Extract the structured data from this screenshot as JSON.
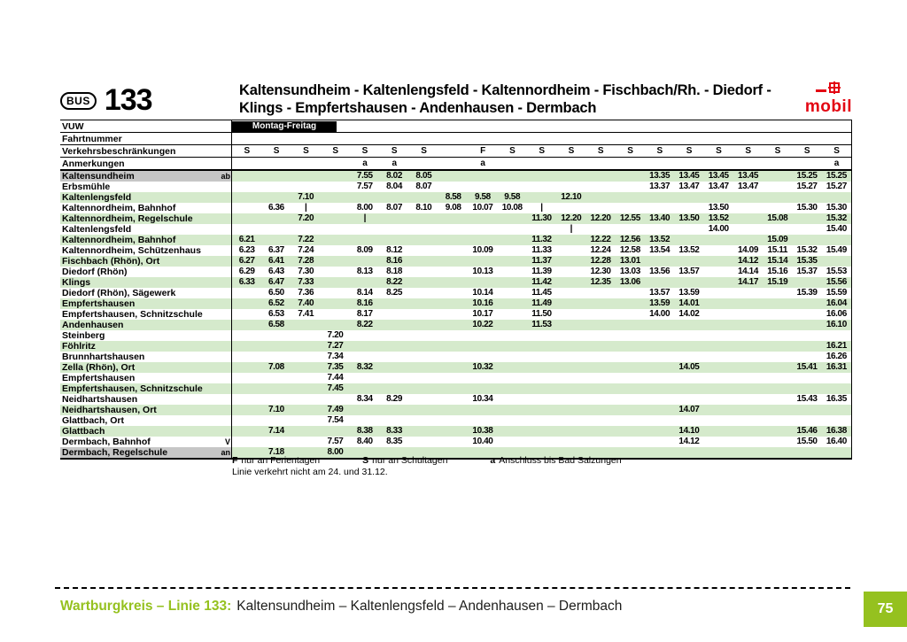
{
  "colors": {
    "accent_green": "#95c11f",
    "stripe_green": "#d5eacc",
    "endpoint_gray": "#c6c6c6",
    "logo_red": "#e30613"
  },
  "header": {
    "bus_badge": "BUS",
    "line_number": "133",
    "title_line1": "Kaltensundheim - Kaltenlengsfeld - Kaltennordheim - Fischbach/Rh. - Diedorf -",
    "title_line2": "Klings - Empfertshausen - Andenhausen - Dermbach",
    "logo": "mobil"
  },
  "table": {
    "column_count": 21,
    "day_band": "Montag-Freitag",
    "meta": {
      "vuw_label": "VUW",
      "fahrtnummer_label": "Fahrtnummer",
      "restrictions_label": "Verkehrsbeschränkungen",
      "restrictions": [
        "S",
        "S",
        "S",
        "S",
        "S",
        "S",
        "S",
        "",
        "F",
        "S",
        "S",
        "S",
        "S",
        "S",
        "S",
        "S",
        "S",
        "S",
        "S",
        "S",
        "S"
      ],
      "remarks_label": "Anmerkungen",
      "remarks": [
        "",
        "",
        "",
        "",
        "a",
        "a",
        "",
        "",
        "a",
        "",
        "",
        "",
        "",
        "",
        "",
        "",
        "",
        "",
        "",
        "",
        "a"
      ]
    },
    "stops": [
      {
        "name": "Kaltensundheim",
        "marker": "ab",
        "endpoint": true,
        "times": [
          "",
          "",
          "",
          "",
          "7.55",
          "8.02",
          "8.05",
          "",
          "",
          "",
          "",
          "",
          "",
          "",
          "13.35",
          "13.45",
          "13.45",
          "13.45",
          "",
          "15.25",
          "15.25"
        ]
      },
      {
        "name": "Erbsmühle",
        "marker": "",
        "endpoint": false,
        "times": [
          "",
          "",
          "",
          "",
          "7.57",
          "8.04",
          "8.07",
          "",
          "",
          "",
          "",
          "",
          "",
          "",
          "13.37",
          "13.47",
          "13.47",
          "13.47",
          "",
          "15.27",
          "15.27"
        ]
      },
      {
        "name": "Kaltenlengsfeld",
        "marker": "",
        "endpoint": false,
        "times": [
          "",
          "",
          "7.10",
          "",
          "",
          "",
          "",
          "8.58",
          "9.58",
          "9.58",
          "",
          "12.10",
          "",
          "",
          "",
          "",
          "",
          "",
          "",
          "",
          ""
        ]
      },
      {
        "name": "Kaltennordheim, Bahnhof",
        "marker": "",
        "endpoint": false,
        "times": [
          "",
          "6.36",
          "|",
          "",
          "8.00",
          "8.07",
          "8.10",
          "9.08",
          "10.07",
          "10.08",
          "|",
          "",
          "",
          "",
          "",
          "",
          "13.50",
          "",
          "",
          "15.30",
          "15.30"
        ]
      },
      {
        "name": "Kaltennordheim, Regelschule",
        "marker": "",
        "endpoint": false,
        "times": [
          "",
          "",
          "7.20",
          "",
          "|",
          "",
          "",
          "",
          "",
          "",
          "11.30",
          "12.20",
          "12.20",
          "12.55",
          "13.40",
          "13.50",
          "13.52",
          "",
          "15.08",
          "",
          "15.32"
        ]
      },
      {
        "name": "Kaltenlengsfeld",
        "marker": "",
        "endpoint": false,
        "times": [
          "",
          "",
          "",
          "",
          "",
          "",
          "",
          "",
          "",
          "",
          "",
          "|",
          "",
          "",
          "",
          "",
          "14.00",
          "",
          "",
          "",
          "15.40"
        ]
      },
      {
        "name": "Kaltennordheim, Bahnhof",
        "marker": "",
        "endpoint": false,
        "times": [
          "6.21",
          "",
          "7.22",
          "",
          "",
          "",
          "",
          "",
          "",
          "",
          "11.32",
          "",
          "12.22",
          "12.56",
          "13.52",
          "",
          "",
          "",
          "15.09",
          "",
          ""
        ]
      },
      {
        "name": "Kaltennordheim, Schützenhaus",
        "marker": "",
        "endpoint": false,
        "times": [
          "6.23",
          "6.37",
          "7.24",
          "",
          "8.09",
          "8.12",
          "",
          "",
          "10.09",
          "",
          "11.33",
          "",
          "12.24",
          "12.58",
          "13.54",
          "13.52",
          "",
          "14.09",
          "15.11",
          "15.32",
          "15.49"
        ]
      },
      {
        "name": "Fischbach (Rhön), Ort",
        "marker": "",
        "endpoint": false,
        "times": [
          "6.27",
          "6.41",
          "7.28",
          "",
          "",
          "8.16",
          "",
          "",
          "",
          "",
          "11.37",
          "",
          "12.28",
          "13.01",
          "",
          "",
          "",
          "14.12",
          "15.14",
          "15.35",
          ""
        ]
      },
      {
        "name": "Diedorf (Rhön)",
        "marker": "",
        "endpoint": false,
        "times": [
          "6.29",
          "6.43",
          "7.30",
          "",
          "8.13",
          "8.18",
          "",
          "",
          "10.13",
          "",
          "11.39",
          "",
          "12.30",
          "13.03",
          "13.56",
          "13.57",
          "",
          "14.14",
          "15.16",
          "15.37",
          "15.53"
        ]
      },
      {
        "name": "Klings",
        "marker": "",
        "endpoint": false,
        "times": [
          "6.33",
          "6.47",
          "7.33",
          "",
          "",
          "8.22",
          "",
          "",
          "",
          "",
          "11.42",
          "",
          "12.35",
          "13.06",
          "",
          "",
          "",
          "14.17",
          "15.19",
          "",
          "15.56"
        ]
      },
      {
        "name": "Diedorf (Rhön), Sägewerk",
        "marker": "",
        "endpoint": false,
        "times": [
          "",
          "6.50",
          "7.36",
          "",
          "8.14",
          "8.25",
          "",
          "",
          "10.14",
          "",
          "11.45",
          "",
          "",
          "",
          "13.57",
          "13.59",
          "",
          "",
          "",
          "15.39",
          "15.59"
        ]
      },
      {
        "name": "Empfertshausen",
        "marker": "",
        "endpoint": false,
        "times": [
          "",
          "6.52",
          "7.40",
          "",
          "8.16",
          "",
          "",
          "",
          "10.16",
          "",
          "11.49",
          "",
          "",
          "",
          "13.59",
          "14.01",
          "",
          "",
          "",
          "",
          "16.04"
        ]
      },
      {
        "name": "Empfertshausen, Schnitzschule",
        "marker": "",
        "endpoint": false,
        "times": [
          "",
          "6.53",
          "7.41",
          "",
          "8.17",
          "",
          "",
          "",
          "10.17",
          "",
          "11.50",
          "",
          "",
          "",
          "14.00",
          "14.02",
          "",
          "",
          "",
          "",
          "16.06"
        ]
      },
      {
        "name": "Andenhausen",
        "marker": "",
        "endpoint": false,
        "times": [
          "",
          "6.58",
          "",
          "",
          "8.22",
          "",
          "",
          "",
          "10.22",
          "",
          "11.53",
          "",
          "",
          "",
          "",
          "",
          "",
          "",
          "",
          "",
          "16.10"
        ]
      },
      {
        "name": "Steinberg",
        "marker": "",
        "endpoint": false,
        "times": [
          "",
          "",
          "",
          "7.20",
          "",
          "",
          "",
          "",
          "",
          "",
          "",
          "",
          "",
          "",
          "",
          "",
          "",
          "",
          "",
          "",
          ""
        ]
      },
      {
        "name": "Föhlritz",
        "marker": "",
        "endpoint": false,
        "times": [
          "",
          "",
          "",
          "7.27",
          "",
          "",
          "",
          "",
          "",
          "",
          "",
          "",
          "",
          "",
          "",
          "",
          "",
          "",
          "",
          "",
          "16.21"
        ]
      },
      {
        "name": "Brunnhartshausen",
        "marker": "",
        "endpoint": false,
        "times": [
          "",
          "",
          "",
          "7.34",
          "",
          "",
          "",
          "",
          "",
          "",
          "",
          "",
          "",
          "",
          "",
          "",
          "",
          "",
          "",
          "",
          "16.26"
        ]
      },
      {
        "name": "Zella (Rhön), Ort",
        "marker": "",
        "endpoint": false,
        "times": [
          "",
          "7.08",
          "",
          "7.35",
          "8.32",
          "",
          "",
          "",
          "10.32",
          "",
          "",
          "",
          "",
          "",
          "",
          "14.05",
          "",
          "",
          "",
          "15.41",
          "16.31"
        ]
      },
      {
        "name": "Empfertshausen",
        "marker": "",
        "endpoint": false,
        "times": [
          "",
          "",
          "",
          "7.44",
          "",
          "",
          "",
          "",
          "",
          "",
          "",
          "",
          "",
          "",
          "",
          "",
          "",
          "",
          "",
          "",
          ""
        ]
      },
      {
        "name": "Empfertshausen, Schnitzschule",
        "marker": "",
        "endpoint": false,
        "times": [
          "",
          "",
          "",
          "7.45",
          "",
          "",
          "",
          "",
          "",
          "",
          "",
          "",
          "",
          "",
          "",
          "",
          "",
          "",
          "",
          "",
          ""
        ]
      },
      {
        "name": "Neidhartshausen",
        "marker": "",
        "endpoint": false,
        "times": [
          "",
          "",
          "",
          "",
          "8.34",
          "8.29",
          "",
          "",
          "10.34",
          "",
          "",
          "",
          "",
          "",
          "",
          "",
          "",
          "",
          "",
          "15.43",
          "16.35"
        ]
      },
      {
        "name": "Neidhartshausen, Ort",
        "marker": "",
        "endpoint": false,
        "times": [
          "",
          "7.10",
          "",
          "7.49",
          "",
          "",
          "",
          "",
          "",
          "",
          "",
          "",
          "",
          "",
          "",
          "14.07",
          "",
          "",
          "",
          "",
          ""
        ]
      },
      {
        "name": "Glattbach, Ort",
        "marker": "",
        "endpoint": false,
        "times": [
          "",
          "",
          "",
          "7.54",
          "",
          "",
          "",
          "",
          "",
          "",
          "",
          "",
          "",
          "",
          "",
          "",
          "",
          "",
          "",
          "",
          ""
        ]
      },
      {
        "name": "Glattbach",
        "marker": "",
        "endpoint": false,
        "times": [
          "",
          "7.14",
          "",
          "",
          "8.38",
          "8.33",
          "",
          "",
          "10.38",
          "",
          "",
          "",
          "",
          "",
          "",
          "14.10",
          "",
          "",
          "",
          "15.46",
          "16.38"
        ]
      },
      {
        "name": "Dermbach, Bahnhof",
        "marker": "V",
        "endpoint": false,
        "times": [
          "",
          "",
          "",
          "7.57",
          "8.40",
          "8.35",
          "",
          "",
          "10.40",
          "",
          "",
          "",
          "",
          "",
          "",
          "14.12",
          "",
          "",
          "",
          "15.50",
          "16.40"
        ]
      },
      {
        "name": "Dermbach, Regelschule",
        "marker": "an",
        "endpoint": true,
        "times": [
          "",
          "7.18",
          "",
          "8.00",
          "",
          "",
          "",
          "",
          "",
          "",
          "",
          "",
          "",
          "",
          "",
          "",
          "",
          "",
          "",
          "",
          ""
        ]
      }
    ]
  },
  "legend": {
    "items": [
      {
        "key": "F",
        "text": "nur an Ferientagen"
      },
      {
        "key": "S",
        "text": "nur an Schultagen"
      },
      {
        "key": "a",
        "text": "Anschluss bis Bad Salzungen"
      }
    ],
    "note": "Linie verkehrt nicht am 24. und 31.12."
  },
  "footer": {
    "region_line": "Wartburgkreis – Linie 133:",
    "route": "Kaltensundheim – Kaltenlengsfeld – Andenhausen – Dermbach",
    "page": "75"
  }
}
